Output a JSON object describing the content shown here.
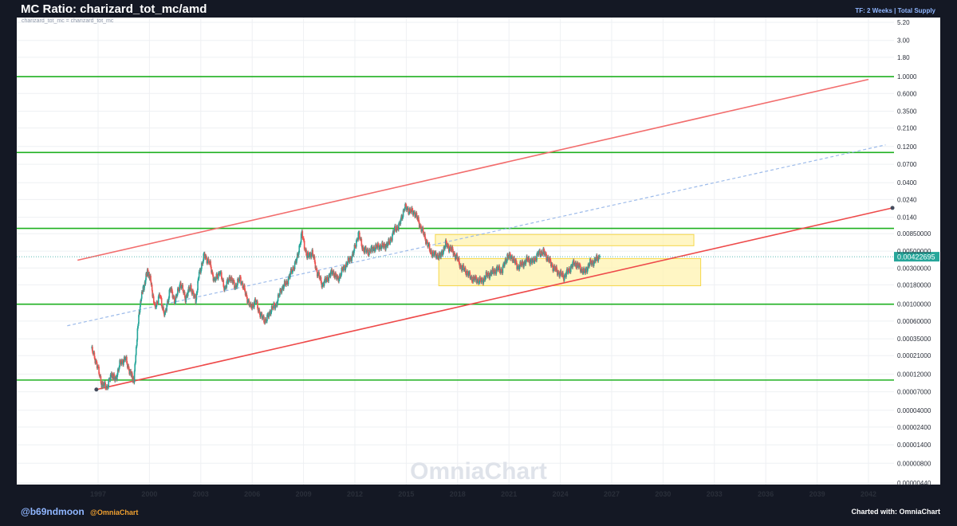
{
  "header": {
    "title": "MC Ratio: charizard_tot_mc/amd",
    "timeframe": "TF: 2 Weeks | Total Supply"
  },
  "footer": {
    "author_handle": "@b69ndmoon",
    "brand_handle": "@OmniaChart",
    "credit": "Charted with: OmniaChart"
  },
  "chart_data": {
    "type": "line",
    "subtitle": "charizard_tot_mc = charizard_tot_mc",
    "watermark": "OmniaChart",
    "yscale": "log",
    "ylim": [
      4.4e-06,
      5.2
    ],
    "xlim": [
      1995.8,
      2044.0
    ],
    "y_ticks": [
      "5.20",
      "3.00",
      "1.80",
      "1.0000",
      "0.6000",
      "0.3500",
      "0.2100",
      "0.1200",
      "0.0700",
      "0.0400",
      "0.0240",
      "0.0140",
      "0.00850000",
      "0.00500000",
      "0.00300000",
      "0.00180000",
      "0.00100000",
      "0.00060000",
      "0.00035000",
      "0.00021000",
      "0.00012000",
      "0.00007000",
      "0.00004000",
      "0.00002400",
      "0.00001400",
      "0.00000800",
      "0.00000440"
    ],
    "x_ticks": [
      "1997",
      "2000",
      "2003",
      "2006",
      "2009",
      "2012",
      "2015",
      "2018",
      "2021",
      "2024",
      "2027",
      "2030",
      "2033",
      "2036",
      "2039",
      "2042"
    ],
    "last_value": "0.00422695",
    "colors": {
      "up": "#26a69a",
      "down": "#ef5350",
      "channel": "#f26d6d",
      "midline": "#9dbbea",
      "levels": "#1fb020",
      "zone_fill": "#fff3b0",
      "zone_stroke": "#f5d74a"
    },
    "horizontal_levels": [
      1.0,
      0.1,
      0.01,
      0.001,
      0.0001
    ],
    "channel": {
      "upper": [
        [
          1995.8,
          0.0038
        ],
        [
          2042.0,
          0.92
        ]
      ],
      "lower": [
        [
          1996.9,
          7.5e-05
        ],
        [
          2043.4,
          0.0186
        ]
      ],
      "mid": [
        [
          1995.2,
          0.00052
        ],
        [
          2043.0,
          0.126
        ]
      ]
    },
    "zones": [
      {
        "x0": 2016.7,
        "x1": 2031.8,
        "y0": 0.0059,
        "y1": 0.0083
      },
      {
        "x0": 2016.9,
        "x1": 2032.2,
        "y0": 0.00175,
        "y1": 0.004
      }
    ],
    "series": [
      {
        "x": [
          1996.6,
          1996.9,
          1997.2,
          1997.5,
          1997.8,
          1998.0,
          1998.3,
          1998.6,
          1998.9,
          1999.1,
          1999.3,
          1999.5,
          1999.7,
          1999.9,
          2000.1,
          2000.3,
          2000.6,
          2000.9,
          2001.2,
          2001.5,
          2001.8,
          2002.1,
          2002.4,
          2002.7,
          2002.9,
          2003.2,
          2003.5,
          2003.8,
          2004.1,
          2004.4,
          2004.7,
          2005.0,
          2005.3,
          2005.6,
          2005.9,
          2006.2,
          2006.5,
          2006.8,
          2007.1,
          2007.4,
          2007.7,
          2008.0,
          2008.3,
          2008.6,
          2008.9,
          2009.2,
          2009.5,
          2009.8,
          2010.1,
          2010.4,
          2010.7,
          2011.0,
          2011.3,
          2011.6,
          2011.9,
          2012.2,
          2012.5,
          2012.8,
          2013.1,
          2013.4,
          2013.7,
          2014.0,
          2014.3,
          2014.6,
          2014.9,
          2015.2,
          2015.5,
          2015.8,
          2016.1,
          2016.4,
          2016.7,
          2017.0,
          2017.3,
          2017.6,
          2017.9,
          2018.2,
          2018.5,
          2018.8,
          2019.1,
          2019.4,
          2019.7,
          2020.0,
          2020.3,
          2020.6,
          2020.9,
          2021.2,
          2021.5,
          2021.8,
          2022.1,
          2022.4,
          2022.7,
          2023.0,
          2023.3,
          2023.6,
          2023.9,
          2024.2,
          2024.5,
          2024.8,
          2025.1,
          2025.4,
          2025.7,
          2026.0,
          2026.3
        ],
        "y": [
          0.00026,
          0.00017,
          9e-05,
          8e-05,
          0.00012,
          0.0001,
          0.00017,
          0.00019,
          0.00012,
          0.0001,
          0.00045,
          0.0012,
          0.0018,
          0.0028,
          0.0019,
          0.0009,
          0.0013,
          0.0007,
          0.0016,
          0.0011,
          0.0019,
          0.0012,
          0.0017,
          0.0011,
          0.0025,
          0.0044,
          0.0035,
          0.002,
          0.0027,
          0.0016,
          0.0023,
          0.0017,
          0.0022,
          0.0014,
          0.0009,
          0.0011,
          0.0007,
          0.0006,
          0.00085,
          0.001,
          0.0016,
          0.0019,
          0.0027,
          0.0038,
          0.0085,
          0.0042,
          0.0048,
          0.0026,
          0.0018,
          0.0022,
          0.0027,
          0.0021,
          0.0029,
          0.0036,
          0.0046,
          0.0085,
          0.0052,
          0.0049,
          0.0055,
          0.0058,
          0.0058,
          0.0064,
          0.0095,
          0.011,
          0.019,
          0.017,
          0.016,
          0.011,
          0.0075,
          0.005,
          0.0044,
          0.0043,
          0.0062,
          0.0053,
          0.0043,
          0.0031,
          0.0027,
          0.0022,
          0.0021,
          0.002,
          0.0024,
          0.0026,
          0.0029,
          0.0028,
          0.0043,
          0.0041,
          0.0031,
          0.0034,
          0.0039,
          0.0036,
          0.0046,
          0.0049,
          0.0039,
          0.003,
          0.0026,
          0.0023,
          0.0028,
          0.0035,
          0.0031,
          0.0026,
          0.0034,
          0.0037,
          0.0043
        ]
      }
    ]
  }
}
